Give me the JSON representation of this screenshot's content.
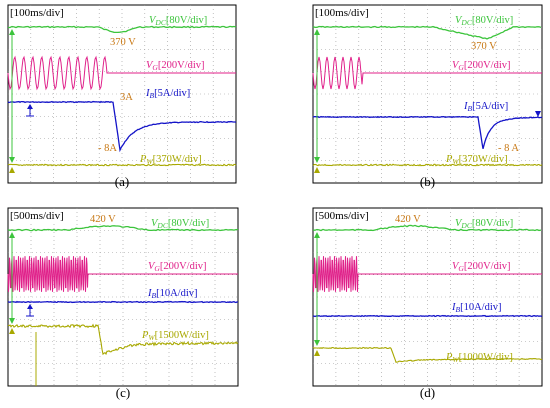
{
  "colors": {
    "vdc": "#3cc43c",
    "vg": "#e0218a",
    "ib": "#1414c8",
    "pw": "#a8a800",
    "annotation": "#c87814",
    "frame": "#000000"
  },
  "chart_data": [
    {
      "type": "line",
      "panel": "(a)",
      "time_scale": "[100ms/div]",
      "traces": {
        "vdc": {
          "label_main": "V",
          "label_sub": "DC",
          "label_scale": "[80V/div]"
        },
        "vg": {
          "label_main": "V",
          "label_sub": "G",
          "label_scale": "[200V/div]"
        },
        "ib": {
          "label_main": "I",
          "label_sub": "B",
          "label_scale": "[5A/div]"
        },
        "pw": {
          "label_main": "P",
          "label_sub": "W",
          "label_scale": "[370W/div]"
        }
      },
      "annotations": [
        "370 V",
        "3A",
        "- 8A"
      ]
    },
    {
      "type": "line",
      "panel": "(b)",
      "time_scale": "[100ms/div]",
      "traces": {
        "vdc": {
          "label_main": "V",
          "label_sub": "DC",
          "label_scale": "[80V/div]"
        },
        "vg": {
          "label_main": "V",
          "label_sub": "G",
          "label_scale": "[200V/div]"
        },
        "ib": {
          "label_main": "I",
          "label_sub": "B",
          "label_scale": "[5A/div]"
        },
        "pw": {
          "label_main": "P",
          "label_sub": "W",
          "label_scale": "[370W/div]"
        }
      },
      "annotations": [
        "370 V",
        "- 8 A"
      ]
    },
    {
      "type": "line",
      "panel": "(c)",
      "time_scale": "[500ms/div]",
      "traces": {
        "vdc": {
          "label_main": "V",
          "label_sub": "DC",
          "label_scale": "[80V/div]"
        },
        "vg": {
          "label_main": "V",
          "label_sub": "G",
          "label_scale": "[200V/div]"
        },
        "ib": {
          "label_main": "I",
          "label_sub": "B",
          "label_scale": "[10A/div]"
        },
        "pw": {
          "label_main": "P",
          "label_sub": "W",
          "label_scale": "[1500W/div]"
        }
      },
      "annotations": [
        "420 V"
      ]
    },
    {
      "type": "line",
      "panel": "(d)",
      "time_scale": "[500ms/div]",
      "traces": {
        "vdc": {
          "label_main": "V",
          "label_sub": "DC",
          "label_scale": "[80V/div]"
        },
        "vg": {
          "label_main": "V",
          "label_sub": "G",
          "label_scale": "[200V/div]"
        },
        "ib": {
          "label_main": "I",
          "label_sub": "B",
          "label_scale": "[10A/div]"
        },
        "pw": {
          "label_main": "P",
          "label_sub": "W",
          "label_scale": "[1000W/div]"
        }
      },
      "annotations": [
        "420 V"
      ]
    }
  ]
}
